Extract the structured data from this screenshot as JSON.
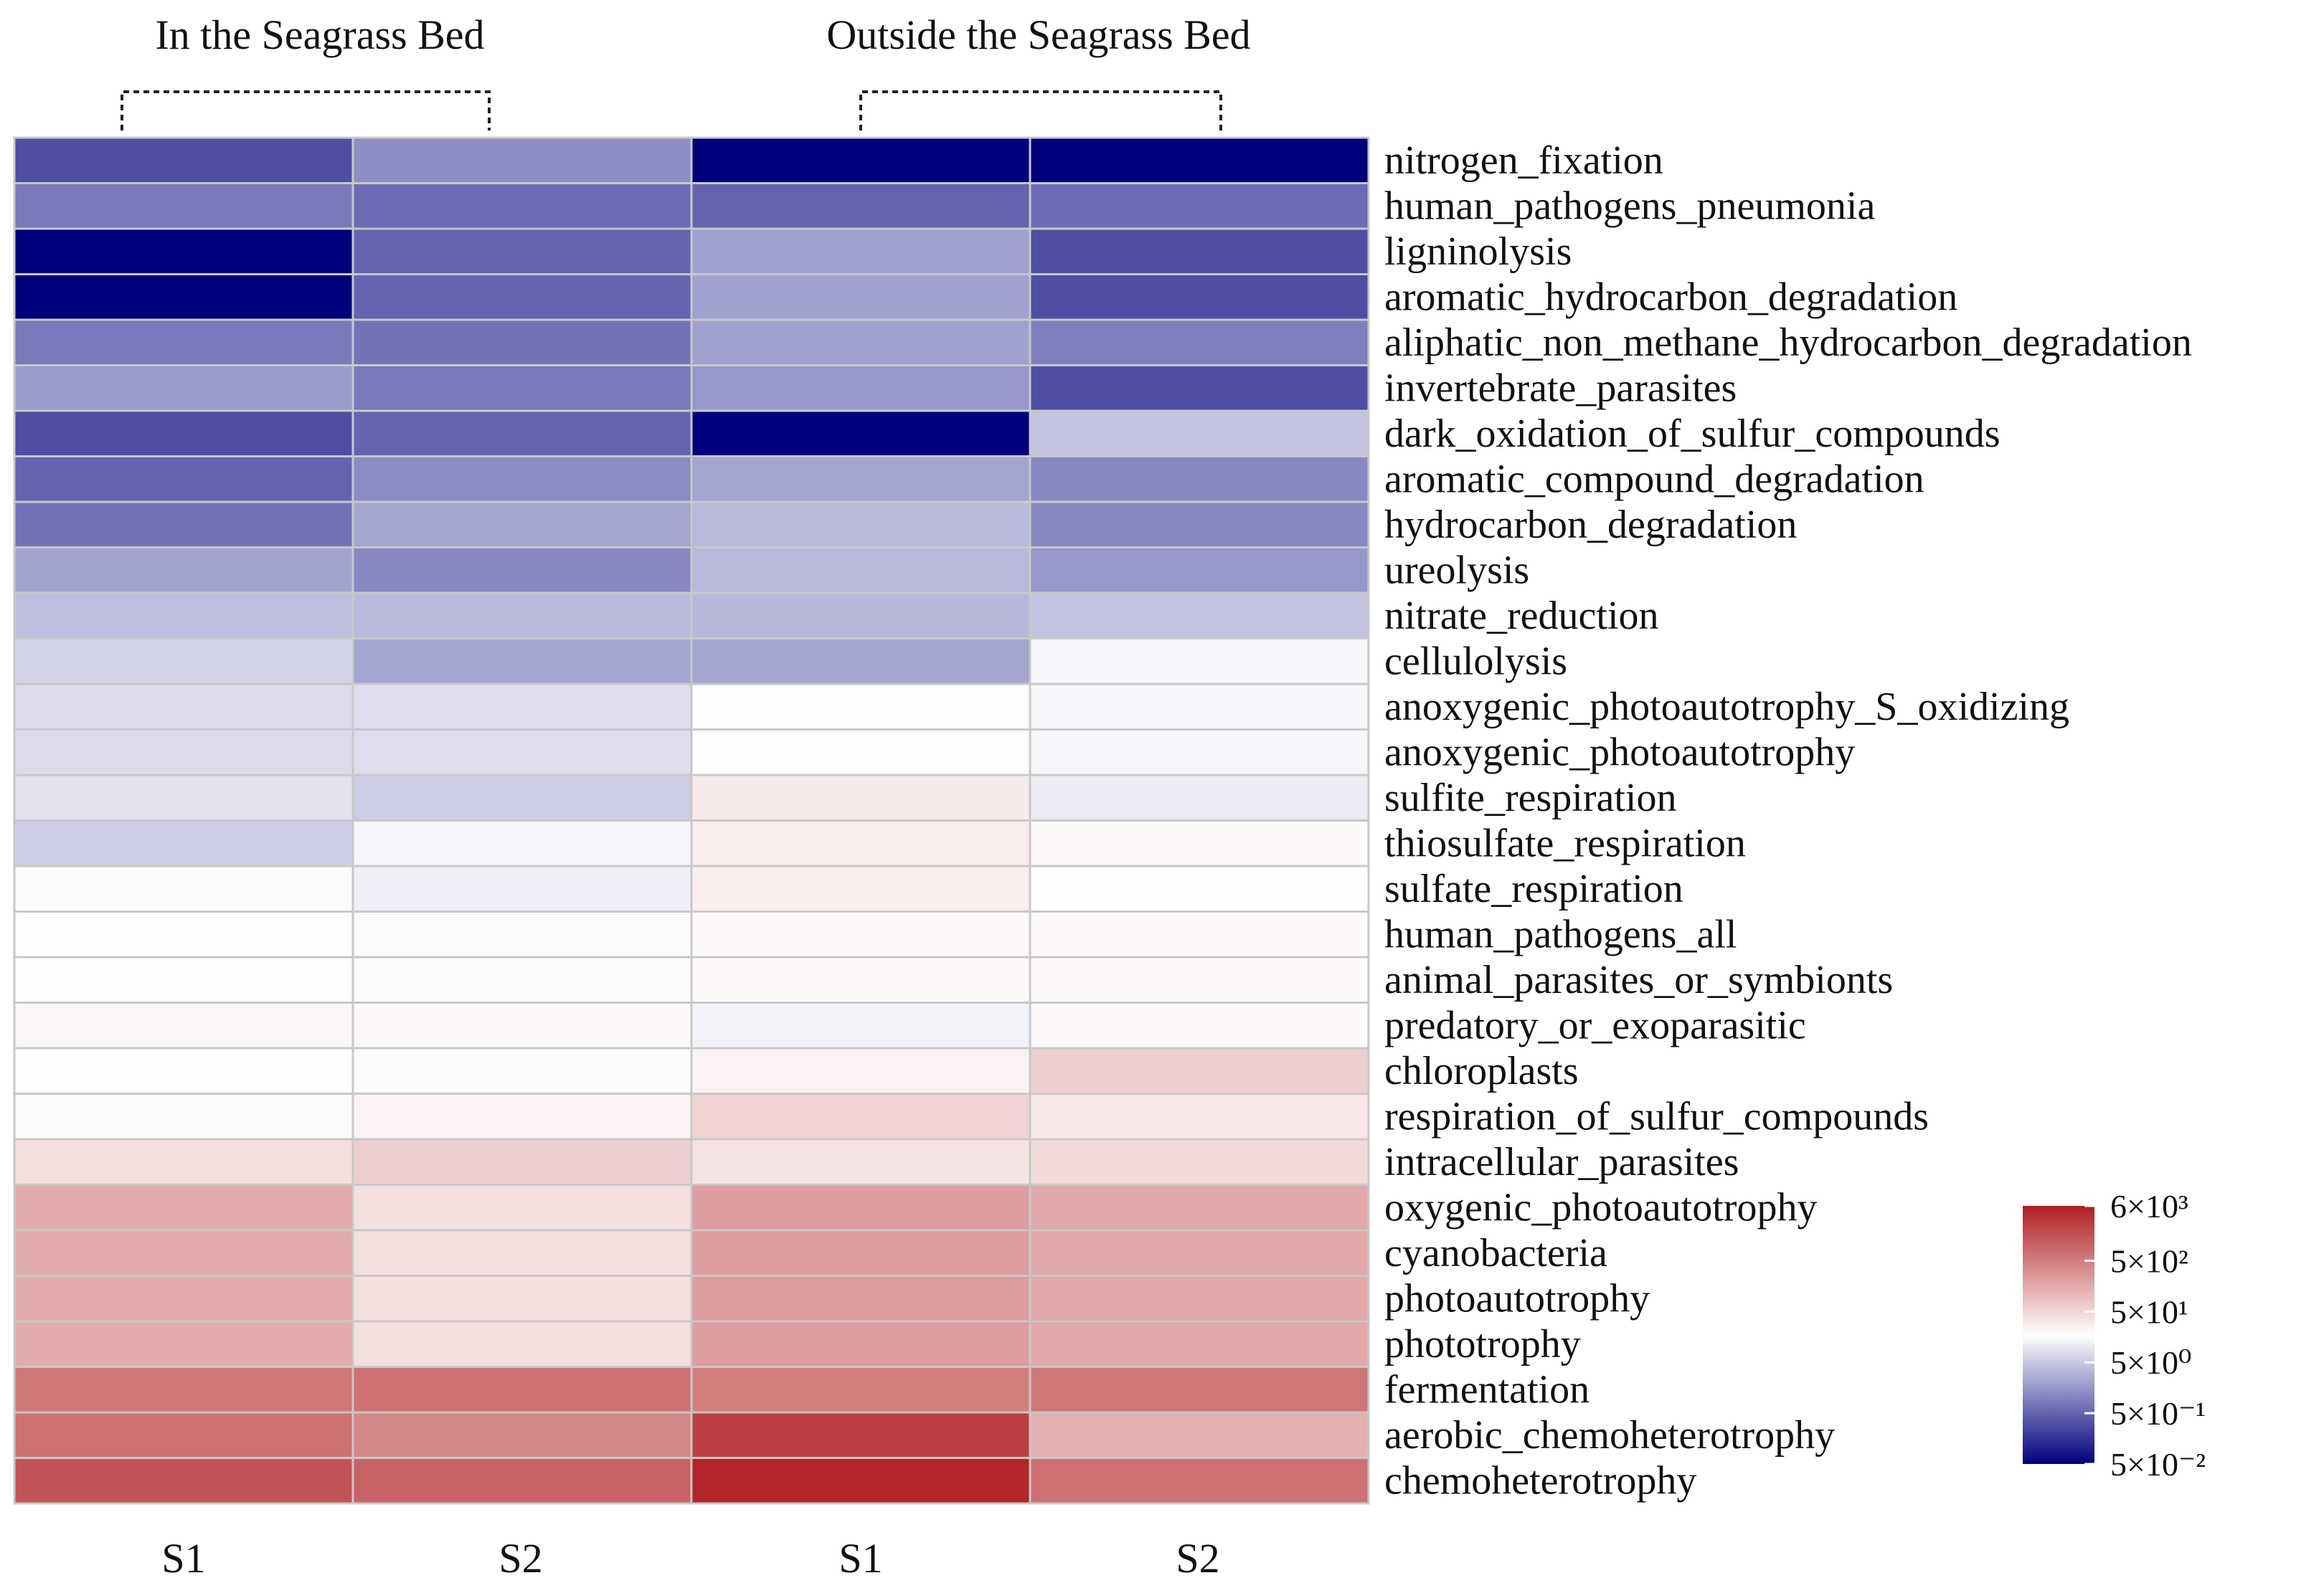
{
  "chart_data": {
    "type": "heatmap",
    "color_scale": "log",
    "colors": {
      "low": "#00007d",
      "mid": "#ffffff",
      "high": "#b01e21"
    },
    "legend": {
      "placement": "right",
      "ticks": [
        {
          "value": 6000,
          "label": "6×10³"
        },
        {
          "value": 500,
          "label": "5×10²"
        },
        {
          "value": 50,
          "label": "5×10¹"
        },
        {
          "value": 5,
          "label": "5×10⁰"
        },
        {
          "value": 0.5,
          "label": "5×10⁻¹"
        },
        {
          "value": 0.05,
          "label": "5×10⁻²"
        }
      ]
    },
    "groups": [
      {
        "label": "In the Seagrass Bed",
        "columns": [
          0,
          1
        ]
      },
      {
        "label": "Outside the Seagrass Bed",
        "columns": [
          2,
          3
        ]
      }
    ],
    "columns": [
      "S1",
      "S2",
      "S1",
      "S2"
    ],
    "rows": [
      {
        "label": "nitrogen_fixation",
        "values": [
          0.3,
          1.3,
          0.05,
          0.05
        ]
      },
      {
        "label": "human_pathogens_pneumonia",
        "values": [
          0.8,
          0.6,
          0.5,
          0.6
        ]
      },
      {
        "label": "ligninolysis",
        "values": [
          0.05,
          0.5,
          2.0,
          0.3
        ]
      },
      {
        "label": "aromatic_hydrocarbon_degradation",
        "values": [
          0.05,
          0.5,
          2.0,
          0.3
        ]
      },
      {
        "label": "aliphatic_non_methane_hydrocarbon_degradation",
        "values": [
          0.8,
          0.7,
          2.0,
          0.9
        ]
      },
      {
        "label": "invertebrate_parasites",
        "values": [
          1.8,
          0.8,
          1.6,
          0.3
        ]
      },
      {
        "label": "dark_oxidation_of_sulfur_compounds",
        "values": [
          0.3,
          0.5,
          0.05,
          4.5
        ]
      },
      {
        "label": "aromatic_compound_degradation",
        "values": [
          0.5,
          1.2,
          2.2,
          1.1
        ]
      },
      {
        "label": "hydrocarbon_degradation",
        "values": [
          0.7,
          2.2,
          3.5,
          1.1
        ]
      },
      {
        "label": "ureolysis",
        "values": [
          2.1,
          1.1,
          3.5,
          1.6
        ]
      },
      {
        "label": "nitrate_reduction",
        "values": [
          3.8,
          3.6,
          3.4,
          4.4
        ]
      },
      {
        "label": "cellulolysis",
        "values": [
          6.5,
          2.2,
          2.2,
          14
        ]
      },
      {
        "label": "anoxygenic_photoautotrophy_S_oxidizing",
        "values": [
          7.5,
          8.0,
          18,
          14
        ]
      },
      {
        "label": "anoxygenic_photoautotrophy",
        "values": [
          7.5,
          8.0,
          18,
          14
        ]
      },
      {
        "label": "sulfite_respiration",
        "values": [
          9,
          5.5,
          30,
          11
        ]
      },
      {
        "label": "thiosulfate_respiration",
        "values": [
          5.5,
          14,
          28,
          20
        ]
      },
      {
        "label": "sulfate_respiration",
        "values": [
          16,
          12,
          28,
          18
        ]
      },
      {
        "label": "human_pathogens_all",
        "values": [
          18,
          16,
          20,
          20
        ]
      },
      {
        "label": "animal_parasites_or_symbionts",
        "values": [
          18,
          16,
          20,
          20
        ]
      },
      {
        "label": "predatory_or_exoparasitic",
        "values": [
          22,
          20,
          13,
          20
        ]
      },
      {
        "label": "chloroplasts",
        "values": [
          18,
          16,
          24,
          60
        ]
      },
      {
        "label": "respiration_of_sulfur_compounds",
        "values": [
          16,
          24,
          55,
          32
        ]
      },
      {
        "label": "intracellular_parasites",
        "values": [
          40,
          60,
          36,
          45
        ]
      },
      {
        "label": "oxygenic_photoautotrophy",
        "values": [
          150,
          40,
          220,
          160
        ]
      },
      {
        "label": "cyanobacteria",
        "values": [
          150,
          40,
          220,
          160
        ]
      },
      {
        "label": "photoautotrophy",
        "values": [
          150,
          40,
          220,
          160
        ]
      },
      {
        "label": "phototrophy",
        "values": [
          150,
          40,
          220,
          160
        ]
      },
      {
        "label": "fermentation",
        "values": [
          600,
          700,
          500,
          600
        ]
      },
      {
        "label": "aerobic_chemoheterotrophy",
        "values": [
          700,
          400,
          2500,
          130
        ]
      },
      {
        "label": "chemoheterotrophy",
        "values": [
          1500,
          1000,
          5000,
          700
        ]
      }
    ]
  }
}
